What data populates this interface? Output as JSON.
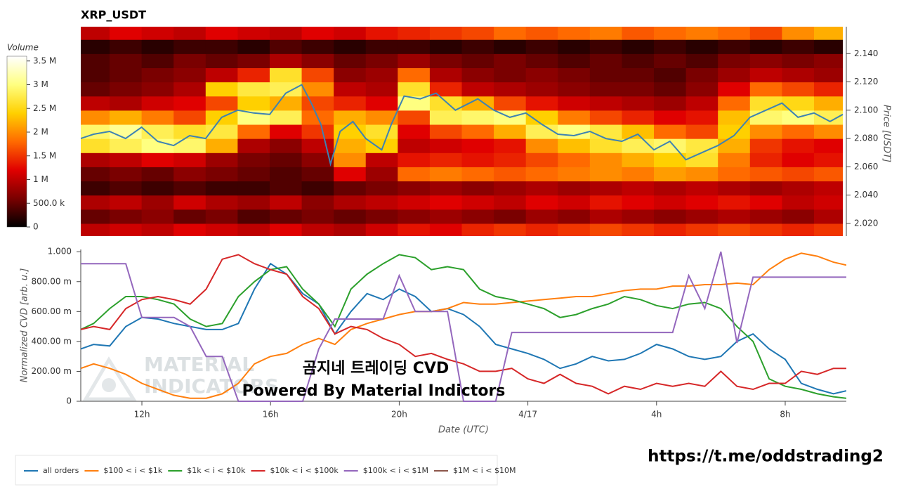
{
  "chart_data": [
    {
      "type": "heatmap",
      "title": "XRP_USDT",
      "ylabel": "Price [USDT]",
      "xlim": [
        10.1,
        33.9
      ],
      "ylim": [
        2.011,
        2.159
      ],
      "yticks": [
        {
          "value": 2.02,
          "label": "2.020"
        },
        {
          "value": 2.04,
          "label": "2.040"
        },
        {
          "value": 2.06,
          "label": "2.060"
        },
        {
          "value": 2.08,
          "label": "2.080"
        },
        {
          "value": 2.1,
          "label": "2.100"
        },
        {
          "value": 2.12,
          "label": "2.120"
        },
        {
          "value": 2.14,
          "label": "2.140"
        }
      ],
      "x": [
        10.5,
        11.5,
        12.5,
        13.5,
        14.5,
        15.5,
        16.5,
        17.5,
        18.5,
        19.5,
        20.5,
        21.5,
        22.5,
        23.5,
        24.5,
        25.5,
        26.5,
        27.5,
        28.5,
        29.5,
        30.5,
        31.5,
        32.5,
        33.5
      ],
      "y": [
        2.015,
        2.025,
        2.035,
        2.045,
        2.055,
        2.065,
        2.075,
        2.085,
        2.095,
        2.105,
        2.115,
        2.125,
        2.135,
        2.145,
        2.155
      ],
      "values": [
        [
          1000000.0,
          1100000.0,
          1000000.0,
          1200000.0,
          1100000.0,
          1000000.0,
          1200000.0,
          1000000.0,
          900000.0,
          1100000.0,
          1300000.0,
          1200000.0,
          1400000.0,
          1500000.0,
          1400000.0,
          1500000.0,
          1600000.0,
          1500000.0,
          1400000.0,
          1500000.0,
          1600000.0,
          1500000.0,
          1400000.0,
          1500000.0
        ],
        [
          500000.0,
          600000.0,
          700000.0,
          500000.0,
          600000.0,
          400000.0,
          500000.0,
          600000.0,
          500000.0,
          600000.0,
          700000.0,
          800000.0,
          700000.0,
          600000.0,
          800000.0,
          700000.0,
          900000.0,
          800000.0,
          700000.0,
          800000.0,
          900000.0,
          800000.0,
          700000.0,
          900000.0
        ],
        [
          900000.0,
          1000000.0,
          800000.0,
          1100000.0,
          900000.0,
          800000.0,
          1000000.0,
          700000.0,
          900000.0,
          1000000.0,
          1100000.0,
          1200000.0,
          1100000.0,
          1000000.0,
          1200000.0,
          1100000.0,
          1300000.0,
          1200000.0,
          1100000.0,
          1200000.0,
          1300000.0,
          1200000.0,
          1000000.0,
          1100000.0
        ],
        [
          300000.0,
          400000.0,
          300000.0,
          400000.0,
          300000.0,
          300000.0,
          400000.0,
          300000.0,
          500000.0,
          600000.0,
          700000.0,
          800000.0,
          700000.0,
          800000.0,
          900000.0,
          800000.0,
          900000.0,
          1000000.0,
          900000.0,
          1000000.0,
          900000.0,
          800000.0,
          900000.0,
          1000000.0
        ],
        [
          500000.0,
          600000.0,
          500000.0,
          700000.0,
          600000.0,
          500000.0,
          400000.0,
          500000.0,
          1200000.0,
          800000.0,
          1800000.0,
          1900000.0,
          1800000.0,
          1700000.0,
          1800000.0,
          1900000.0,
          2000000.0,
          1900000.0,
          2100000.0,
          2000000.0,
          1800000.0,
          1700000.0,
          1600000.0,
          1700000.0
        ],
        [
          900000.0,
          1000000.0,
          1200000.0,
          1100000.0,
          800000.0,
          600000.0,
          500000.0,
          700000.0,
          2000000.0,
          1000000.0,
          1300000.0,
          1400000.0,
          1300000.0,
          1400000.0,
          1600000.0,
          1800000.0,
          2000000.0,
          2200000.0,
          2400000.0,
          2600000.0,
          1900000.0,
          1400000.0,
          1200000.0,
          1300000.0
        ],
        [
          2600000.0,
          2800000.0,
          3000000.0,
          2900000.0,
          2200000.0,
          900000.0,
          700000.0,
          1000000.0,
          2200000.0,
          2400000.0,
          1000000.0,
          1100000.0,
          1200000.0,
          1300000.0,
          2000000.0,
          2300000.0,
          2600000.0,
          2800000.0,
          2900000.0,
          2700000.0,
          2200000.0,
          1500000.0,
          1300000.0,
          1200000.0
        ],
        [
          2900000.0,
          3100000.0,
          2800000.0,
          2600000.0,
          2700000.0,
          1800000.0,
          1200000.0,
          1500000.0,
          2400000.0,
          2600000.0,
          1200000.0,
          1600000.0,
          1800000.0,
          2200000.0,
          2800000.0,
          3000000.0,
          2700000.0,
          2300000.0,
          1800000.0,
          1600000.0,
          2400000.0,
          2000000.0,
          1800000.0,
          2000000.0
        ],
        [
          2000000.0,
          2200000.0,
          1900000.0,
          1600000.0,
          2400000.0,
          3000000.0,
          2800000.0,
          1800000.0,
          2200000.0,
          2000000.0,
          1600000.0,
          2800000.0,
          2900000.0,
          3000000.0,
          2400000.0,
          1900000.0,
          1600000.0,
          1400000.0,
          1200000.0,
          1300000.0,
          2300000.0,
          2900000.0,
          3000000.0,
          2800000.0
        ],
        [
          1000000.0,
          900000.0,
          1100000.0,
          1200000.0,
          1600000.0,
          2400000.0,
          2200000.0,
          1600000.0,
          1400000.0,
          1200000.0,
          3000000.0,
          2600000.0,
          2200000.0,
          1600000.0,
          1300000.0,
          1100000.0,
          1000000.0,
          900000.0,
          800000.0,
          1000000.0,
          1800000.0,
          2600000.0,
          2500000.0,
          2200000.0
        ],
        [
          500000.0,
          600000.0,
          700000.0,
          900000.0,
          2400000.0,
          2700000.0,
          2800000.0,
          2000000.0,
          1000000.0,
          900000.0,
          2600000.0,
          1400000.0,
          1000000.0,
          900000.0,
          800000.0,
          700000.0,
          600000.0,
          600000.0,
          500000.0,
          700000.0,
          1200000.0,
          1800000.0,
          1600000.0,
          1400000.0
        ],
        [
          400000.0,
          500000.0,
          600000.0,
          700000.0,
          1000000.0,
          1400000.0,
          2600000.0,
          1600000.0,
          700000.0,
          800000.0,
          1800000.0,
          900000.0,
          700000.0,
          600000.0,
          700000.0,
          600000.0,
          500000.0,
          500000.0,
          400000.0,
          600000.0,
          800000.0,
          1000000.0,
          900000.0,
          800000.0
        ],
        [
          400000.0,
          500000.0,
          400000.0,
          600000.0,
          500000.0,
          600000.0,
          900000.0,
          700000.0,
          500000.0,
          600000.0,
          800000.0,
          600000.0,
          500000.0,
          600000.0,
          500000.0,
          400000.0,
          500000.0,
          400000.0,
          500000.0,
          400000.0,
          600000.0,
          700000.0,
          600000.0,
          700000.0
        ],
        [
          200000.0,
          300000.0,
          200000.0,
          300000.0,
          300000.0,
          200000.0,
          400000.0,
          300000.0,
          200000.0,
          300000.0,
          300000.0,
          200000.0,
          300000.0,
          200000.0,
          300000.0,
          200000.0,
          300000.0,
          200000.0,
          300000.0,
          200000.0,
          300000.0,
          200000.0,
          300000.0,
          200000.0
        ],
        [
          1000000.0,
          1200000.0,
          1100000.0,
          1000000.0,
          1200000.0,
          1100000.0,
          1000000.0,
          1200000.0,
          1100000.0,
          1300000.0,
          1400000.0,
          1500000.0,
          1600000.0,
          1800000.0,
          1700000.0,
          1800000.0,
          1900000.0,
          1700000.0,
          1800000.0,
          1900000.0,
          1800000.0,
          1600000.0,
          2000000.0,
          2200000.0
        ]
      ],
      "colorscale": [
        "#000000",
        "#7a0000",
        "#e00000",
        "#ff6a00",
        "#ffd000",
        "#ffff80",
        "#ffffff"
      ],
      "colorbar": {
        "label": "Volume",
        "lim": [
          0,
          3600000.0
        ],
        "ticks": [
          0,
          {
            "value": 500000.0,
            "label": "500.0 k"
          },
          {
            "value": 1000000.0,
            "label": "1 M"
          },
          {
            "value": 1500000.0,
            "label": "1.5 M"
          },
          {
            "value": 2000000.0,
            "label": "2 M"
          },
          {
            "value": 2500000.0,
            "label": "2.5 M"
          },
          {
            "value": 3000000.0,
            "label": "3 M"
          },
          {
            "value": 3500000.0,
            "label": "3.5 M"
          }
        ]
      },
      "line": {
        "color": "#3d82b3",
        "x": [
          10.1,
          10.5,
          11,
          11.5,
          12,
          12.5,
          13,
          13.5,
          14,
          14.5,
          15,
          15.5,
          16,
          16.5,
          17,
          17.3,
          17.6,
          17.9,
          18.2,
          18.6,
          19,
          19.5,
          19.8,
          20.2,
          20.7,
          21.2,
          21.8,
          22.5,
          23,
          23.5,
          24,
          24.5,
          25,
          25.5,
          26,
          26.5,
          27,
          27.5,
          28,
          28.5,
          29,
          29.5,
          30,
          30.5,
          31,
          31.5,
          32,
          32.5,
          33,
          33.5,
          33.9
        ],
        "values": [
          2.08,
          2.083,
          2.085,
          2.08,
          2.088,
          2.078,
          2.075,
          2.082,
          2.08,
          2.095,
          2.1,
          2.098,
          2.097,
          2.112,
          2.118,
          2.105,
          2.09,
          2.062,
          2.085,
          2.092,
          2.08,
          2.072,
          2.09,
          2.11,
          2.108,
          2.112,
          2.1,
          2.108,
          2.1,
          2.095,
          2.098,
          2.09,
          2.083,
          2.082,
          2.085,
          2.08,
          2.078,
          2.083,
          2.072,
          2.078,
          2.065,
          2.07,
          2.075,
          2.082,
          2.095,
          2.1,
          2.105,
          2.095,
          2.098,
          2.092,
          2.097
        ]
      }
    },
    {
      "type": "line",
      "xlabel": "Date (UTC)",
      "ylabel": "Normalized CVD [arb. u.]",
      "xlim": [
        10.1,
        33.9
      ],
      "ylim": [
        0,
        1.015
      ],
      "xticks": [
        {
          "value": 12,
          "label": "12h"
        },
        {
          "value": 16,
          "label": "16h"
        },
        {
          "value": 20,
          "label": "20h"
        },
        {
          "value": 24,
          "label": "4/17"
        },
        {
          "value": 28,
          "label": "4h"
        },
        {
          "value": 32,
          "label": "8h"
        }
      ],
      "yticks": [
        0,
        {
          "value": 0.2,
          "label": "200.00 m"
        },
        {
          "value": 0.4,
          "label": "400.00 m"
        },
        {
          "value": 0.6,
          "label": "600.00 m"
        },
        {
          "value": 0.8,
          "label": "800.00 m"
        },
        {
          "value": 1,
          "label": "1.000"
        }
      ],
      "legend": "bottom",
      "x": [
        10.1,
        10.5,
        11,
        11.5,
        12,
        12.5,
        13,
        13.5,
        14,
        14.5,
        15,
        15.5,
        16,
        16.5,
        17,
        17.5,
        18,
        18.5,
        19,
        19.5,
        20,
        20.5,
        21,
        21.5,
        22,
        22.5,
        23,
        23.5,
        24,
        24.5,
        25,
        25.5,
        26,
        26.5,
        27,
        27.5,
        28,
        28.5,
        29,
        29.5,
        30,
        30.5,
        31,
        31.5,
        32,
        32.5,
        33,
        33.5,
        33.9
      ],
      "series": [
        {
          "name": "all orders",
          "color": "#1f77b4",
          "values": [
            0.35,
            0.38,
            0.37,
            0.5,
            0.56,
            0.55,
            0.52,
            0.5,
            0.48,
            0.48,
            0.52,
            0.75,
            0.92,
            0.85,
            0.72,
            0.65,
            0.45,
            0.6,
            0.72,
            0.68,
            0.75,
            0.7,
            0.6,
            0.62,
            0.58,
            0.5,
            0.38,
            0.35,
            0.32,
            0.28,
            0.22,
            0.25,
            0.3,
            0.27,
            0.28,
            0.32,
            0.38,
            0.35,
            0.3,
            0.28,
            0.3,
            0.4,
            0.45,
            0.35,
            0.28,
            0.12,
            0.08,
            0.05,
            0.07
          ]
        },
        {
          "name": "$100 < i < $1k",
          "color": "#ff7f0e",
          "values": [
            0.22,
            0.25,
            0.22,
            0.18,
            0.12,
            0.08,
            0.04,
            0.02,
            0.02,
            0.05,
            0.12,
            0.25,
            0.3,
            0.32,
            0.38,
            0.42,
            0.38,
            0.48,
            0.52,
            0.55,
            0.58,
            0.6,
            0.6,
            0.62,
            0.66,
            0.65,
            0.65,
            0.66,
            0.67,
            0.68,
            0.69,
            0.7,
            0.7,
            0.72,
            0.74,
            0.75,
            0.75,
            0.77,
            0.77,
            0.78,
            0.78,
            0.79,
            0.78,
            0.88,
            0.95,
            0.99,
            0.97,
            0.93,
            0.91
          ]
        },
        {
          "name": "$1k < i < $10k",
          "color": "#2ca02c",
          "values": [
            0.48,
            0.52,
            0.62,
            0.7,
            0.7,
            0.68,
            0.65,
            0.55,
            0.5,
            0.52,
            0.7,
            0.8,
            0.88,
            0.9,
            0.75,
            0.65,
            0.5,
            0.75,
            0.85,
            0.92,
            0.98,
            0.96,
            0.88,
            0.9,
            0.88,
            0.75,
            0.7,
            0.68,
            0.65,
            0.62,
            0.56,
            0.58,
            0.62,
            0.65,
            0.7,
            0.68,
            0.64,
            0.62,
            0.65,
            0.66,
            0.62,
            0.5,
            0.4,
            0.15,
            0.1,
            0.08,
            0.05,
            0.03,
            0.02
          ]
        },
        {
          "name": "$10k < i < $100k",
          "color": "#d62728",
          "values": [
            0.48,
            0.5,
            0.48,
            0.62,
            0.68,
            0.7,
            0.68,
            0.65,
            0.75,
            0.95,
            0.98,
            0.92,
            0.88,
            0.85,
            0.7,
            0.62,
            0.45,
            0.5,
            0.48,
            0.42,
            0.38,
            0.3,
            0.32,
            0.28,
            0.25,
            0.2,
            0.2,
            0.22,
            0.15,
            0.12,
            0.18,
            0.12,
            0.1,
            0.05,
            0.1,
            0.08,
            0.12,
            0.1,
            0.12,
            0.1,
            0.2,
            0.1,
            0.08,
            0.12,
            0.12,
            0.2,
            0.18,
            0.22,
            0.22
          ]
        },
        {
          "name": "$100k < i < $1M",
          "color": "#9467bd",
          "values": [
            0.92,
            0.92,
            0.92,
            0.92,
            0.56,
            0.56,
            0.56,
            0.5,
            0.3,
            0.3,
            0,
            0,
            0,
            0,
            0,
            0.35,
            0.55,
            0.55,
            0.55,
            0.55,
            0.84,
            0.6,
            0.6,
            0.6,
            0,
            0,
            0,
            0.46,
            0.46,
            0.46,
            0.46,
            0.46,
            0.46,
            0.46,
            0.46,
            0.46,
            0.46,
            0.46,
            0.84,
            0.62,
            1,
            0.39,
            0.83,
            0.83,
            0.83,
            0.83,
            0.83,
            0.83,
            0.83
          ]
        },
        {
          "name": "$1M < i < $10M",
          "color": "#8c564b",
          "values": [
            null,
            null,
            null,
            null,
            null,
            null,
            null,
            null,
            null,
            null,
            null,
            null,
            null,
            null,
            null,
            null,
            null,
            null,
            null,
            null,
            null,
            null,
            null,
            null,
            null,
            null,
            null,
            null,
            null,
            null,
            null,
            null,
            null,
            null,
            null,
            null,
            null,
            null,
            null,
            null,
            null,
            null,
            null,
            null,
            null,
            null,
            null,
            null,
            null
          ]
        }
      ],
      "watermark": [
        "MATERIAL",
        "INDICATORS"
      ],
      "annotations": [
        "곰지네 트레이딩 CVD",
        "Powered By Material Indictors"
      ]
    }
  ],
  "footer_link": "https://t.me/oddstrading2"
}
